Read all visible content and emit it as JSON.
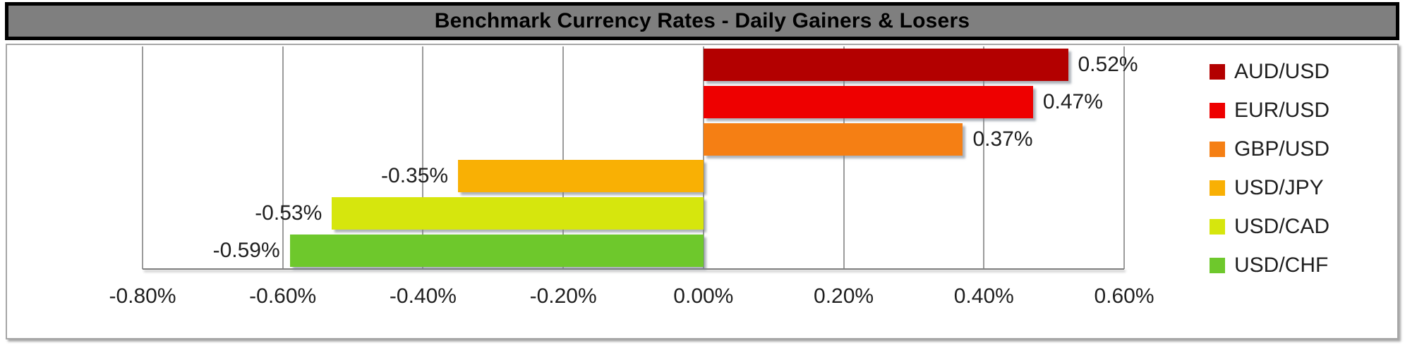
{
  "title": "Benchmark Currency Rates - Daily Gainers & Losers",
  "colors": {
    "title_bar_bg": "#7F7F7F",
    "title_bar_border": "#000000",
    "title_text": "#000000",
    "chart_bg": "#FFFFFF",
    "chart_border": "#A6A6A6",
    "gridline": "#9B9B9B",
    "axis_line": "#808080",
    "label_text": "#1F1F1F"
  },
  "chart_data": {
    "type": "bar",
    "orientation": "horizontal",
    "title": "Benchmark Currency Rates - Daily Gainers & Losers",
    "categories": [
      "AUD/USD",
      "EUR/USD",
      "GBP/USD",
      "USD/JPY",
      "USD/CAD",
      "USD/CHF"
    ],
    "values": [
      0.52,
      0.47,
      0.37,
      -0.35,
      -0.53,
      -0.59
    ],
    "value_labels": [
      "0.52%",
      "0.47%",
      "0.37%",
      "-0.35%",
      "-0.53%",
      "-0.59%"
    ],
    "bar_colors": [
      "#B30000",
      "#EE0000",
      "#F57F14",
      "#F9B004",
      "#D6E60D",
      "#6EC82C"
    ],
    "xlabel": "",
    "ylabel": "",
    "xlim": [
      -0.8,
      0.6
    ],
    "x_ticks": [
      {
        "value": -0.8,
        "label": "-0.80%"
      },
      {
        "value": -0.6,
        "label": "-0.60%"
      },
      {
        "value": -0.4,
        "label": "-0.40%"
      },
      {
        "value": -0.2,
        "label": "-0.20%"
      },
      {
        "value": 0.0,
        "label": "0.00%"
      },
      {
        "value": 0.2,
        "label": "0.20%"
      },
      {
        "value": 0.4,
        "label": "0.40%"
      },
      {
        "value": 0.6,
        "label": "0.60%"
      }
    ],
    "grid": true,
    "legend_position": "right",
    "legend": [
      {
        "label": "AUD/USD",
        "color": "#B30000"
      },
      {
        "label": "EUR/USD",
        "color": "#EE0000"
      },
      {
        "label": "GBP/USD",
        "color": "#F57F14"
      },
      {
        "label": "USD/JPY",
        "color": "#F9B004"
      },
      {
        "label": "USD/CAD",
        "color": "#D6E60D"
      },
      {
        "label": "USD/CHF",
        "color": "#6EC82C"
      }
    ]
  }
}
